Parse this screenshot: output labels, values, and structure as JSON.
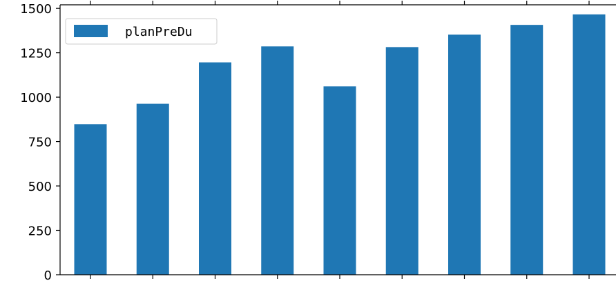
{
  "chart_data": {
    "type": "bar",
    "categories": [
      "",
      "",
      "",
      "",
      "",
      "",
      "",
      "",
      ""
    ],
    "series": [
      {
        "name": "planPreDu",
        "values": [
          848,
          963,
          1196,
          1286,
          1061,
          1282,
          1352,
          1407,
          1466
        ]
      }
    ],
    "ylim": [
      0,
      1520
    ],
    "yticks": [
      0,
      250,
      500,
      750,
      1000,
      1250,
      1500
    ],
    "ytick_labels": [
      "0",
      "250",
      "500",
      "750",
      "1000",
      "1250",
      "1500"
    ],
    "grid": false,
    "legend": {
      "position": "top-left",
      "entries": [
        "planPreDu"
      ]
    },
    "colors": {
      "bar": "#1f77b4",
      "axis": "#000000",
      "background": "#ffffff"
    },
    "title": "",
    "xlabel": "",
    "ylabel": ""
  }
}
